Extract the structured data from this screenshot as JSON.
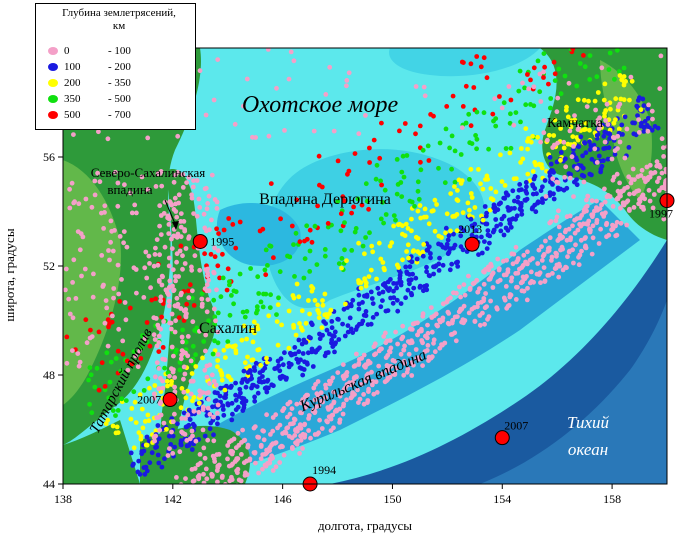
{
  "legend": {
    "title_line1": "Глубина землетрясений,",
    "title_line2": "км",
    "items": [
      {
        "from": "0",
        "to": "- 100",
        "color": "#f4a0c8"
      },
      {
        "from": "100",
        "to": "- 200",
        "color": "#1a1ae0"
      },
      {
        "from": "200",
        "to": "- 350",
        "color": "#ffff00"
      },
      {
        "from": "350",
        "to": "- 500",
        "color": "#10e010"
      },
      {
        "from": "500",
        "to": "- 700",
        "color": "#ff0000"
      }
    ]
  },
  "axes": {
    "xlabel": "долгота, градусы",
    "ylabel": "широта, градусы",
    "xticks": [
      "138",
      "142",
      "146",
      "150",
      "154",
      "158"
    ],
    "yticks": [
      "44",
      "48",
      "52",
      "56"
    ],
    "xlim": [
      138,
      160
    ],
    "ylim": [
      44,
      60
    ]
  },
  "labels": {
    "sea": "Охотское море",
    "kamchatka": "Камчатка",
    "north_sakhalin_1": "Северо-Сахалинская",
    "north_sakhalin_2": "впадина",
    "deryugin": "Впадина Дерюгина",
    "sakhalin": "Сахалин",
    "tatar": "Татарский пролив",
    "kuril": "Курильская впадина",
    "ocean_1": "Тихий",
    "ocean_2": "океан"
  },
  "events": [
    {
      "year": "1995",
      "lon": 143.0,
      "lat": 52.9
    },
    {
      "year": "2013",
      "lon": 152.9,
      "lat": 52.8
    },
    {
      "year": "1997",
      "lon": 160.0,
      "lat": 54.4
    },
    {
      "year": "2007",
      "lon": 141.9,
      "lat": 47.1
    },
    {
      "year": "2007",
      "lon": 154.0,
      "lat": 45.7
    },
    {
      "year": "1994",
      "lon": 147.0,
      "lat": 44.0
    }
  ],
  "colors": {
    "sea_light": "#5ce8ec",
    "sea_mid": "#3ed0e4",
    "sea_deep": "#2aa8d8",
    "ocean": "#1a5aa0",
    "ocean_mid": "#2a78b8",
    "land": "#2e9a3a",
    "land_light": "#62b84a",
    "event": "#ff0000"
  }
}
